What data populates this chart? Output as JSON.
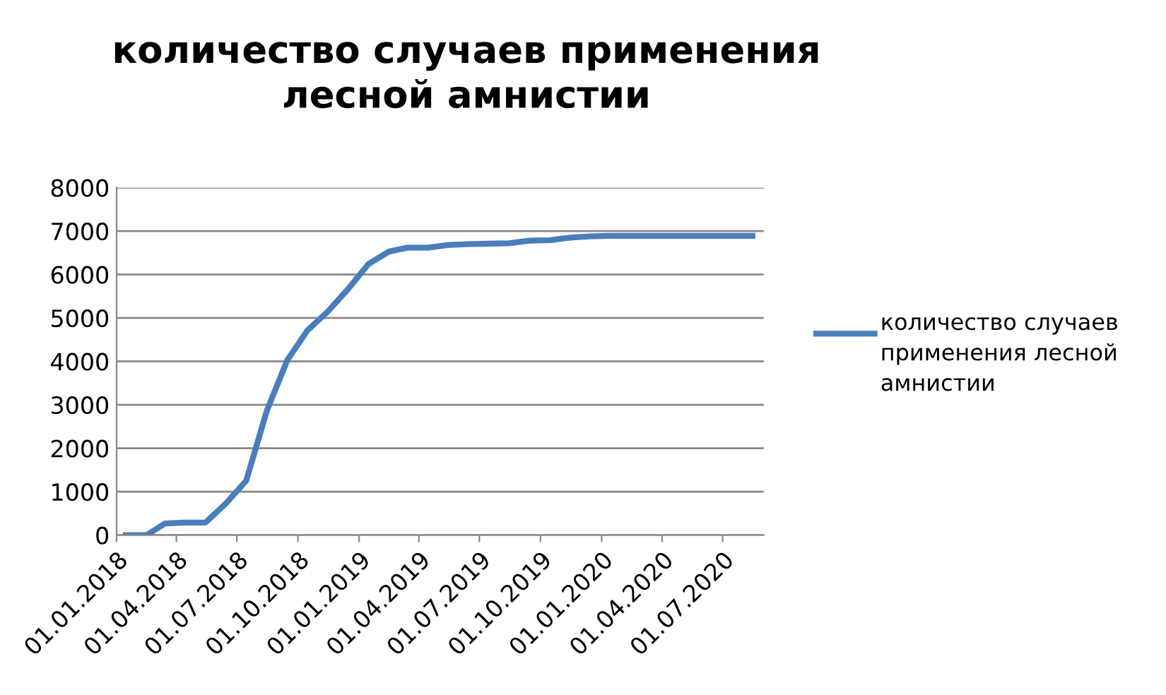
{
  "chart_data": {
    "type": "line",
    "title": "количество случаев применения\nлесной амнистии",
    "x": [
      "2018-01-15",
      "2018-02-15",
      "2018-03-15",
      "2018-04-15",
      "2018-05-15",
      "2018-06-15",
      "2018-07-15",
      "2018-08-15",
      "2018-09-15",
      "2018-10-15",
      "2018-11-15",
      "2018-12-15",
      "2019-01-15",
      "2019-02-15",
      "2019-03-15",
      "2019-04-15",
      "2019-05-15",
      "2019-06-15",
      "2019-07-15",
      "2019-08-15",
      "2019-09-15",
      "2019-10-15",
      "2019-11-15",
      "2019-12-15",
      "2020-01-15",
      "2020-02-15",
      "2020-03-15",
      "2020-04-15",
      "2020-05-15",
      "2020-06-15",
      "2020-07-15",
      "2020-08-15"
    ],
    "series": [
      {
        "name": "количество случаев применения лесной амнистии",
        "color": "#4a7ebb",
        "values": [
          0,
          0,
          270,
          290,
          290,
          740,
          1250,
          2860,
          4030,
          4710,
          5150,
          5660,
          6240,
          6530,
          6620,
          6620,
          6680,
          6700,
          6710,
          6720,
          6780,
          6790,
          6850,
          6880,
          6890,
          6890,
          6890,
          6890,
          6890,
          6890,
          6890,
          6890
        ]
      }
    ],
    "xlim": [
      "2018-01-01",
      "2020-09-01"
    ],
    "xticks": [
      {
        "value": "2018-01-01",
        "label": "01.01.2018"
      },
      {
        "value": "2018-04-01",
        "label": "01.04.2018"
      },
      {
        "value": "2018-07-01",
        "label": "01.07.2018"
      },
      {
        "value": "2018-10-01",
        "label": "01.10.2018"
      },
      {
        "value": "2019-01-01",
        "label": "01.01.2019"
      },
      {
        "value": "2019-04-01",
        "label": "01.04.2019"
      },
      {
        "value": "2019-07-01",
        "label": "01.07.2019"
      },
      {
        "value": "2019-10-01",
        "label": "01.10.2019"
      },
      {
        "value": "2020-01-01",
        "label": "01.01.2020"
      },
      {
        "value": "2020-04-01",
        "label": "01.04.2020"
      },
      {
        "value": "2020-07-01",
        "label": "01.07.2020"
      }
    ],
    "ylim": [
      0,
      8000
    ],
    "yticks": [
      0,
      1000,
      2000,
      3000,
      4000,
      5000,
      6000,
      7000,
      8000
    ],
    "grid": "y",
    "legend": "right",
    "marker": "none",
    "line_style": "solid"
  }
}
